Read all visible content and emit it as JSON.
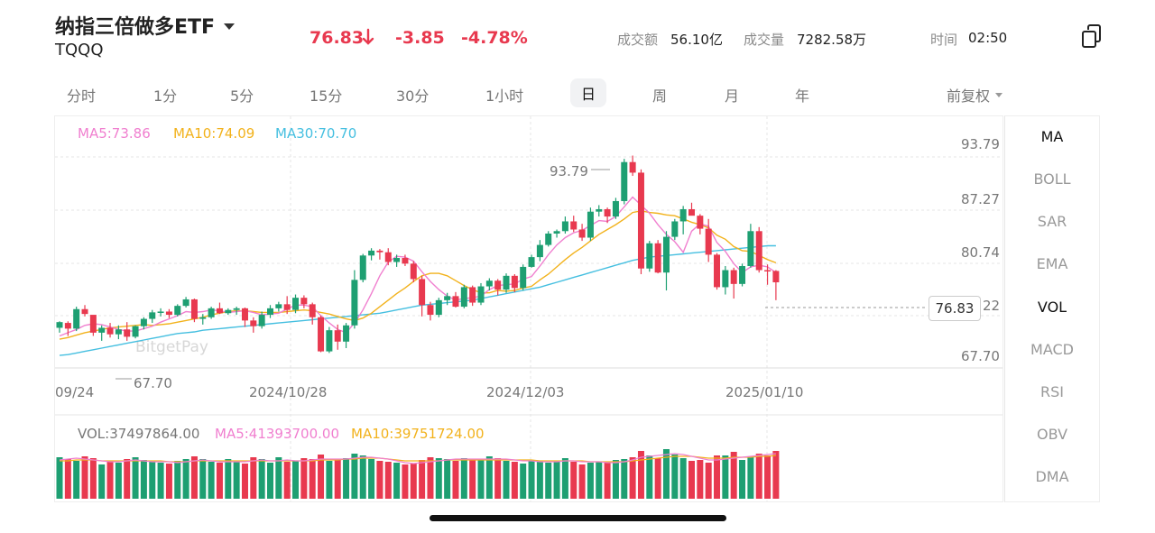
{
  "header": {
    "title": "纳指三倍做多ETF",
    "ticker": "TQQQ",
    "price": "76.83",
    "change": "-3.85",
    "change_pct": "-4.78%",
    "turnover_label": "成交额",
    "turnover_value": "56.10亿",
    "volume_label": "成交量",
    "volume_value": "7282.58万",
    "time_label": "时间",
    "time_value": "02:50"
  },
  "tabs": [
    "分时",
    "1分",
    "5分",
    "15分",
    "30分",
    "1小时",
    "日",
    "周",
    "月",
    "年"
  ],
  "active_tab": "日",
  "adjust_label": "前复权",
  "indicators": [
    "MA",
    "BOLL",
    "SAR",
    "EMA",
    "VOL",
    "MACD",
    "RSI",
    "OBV",
    "DMA"
  ],
  "active_indicators": [
    "MA",
    "VOL"
  ],
  "price_legend": {
    "ma5": "MA5:73.86",
    "ma10": "MA10:74.09",
    "ma30": "MA30:70.70"
  },
  "vol_legend": {
    "vol": "VOL:37497864.00",
    "ma5": "MA5:41393700.00",
    "ma10": "MA10:39751724.00"
  },
  "y_axis_labels": [
    "93.79",
    "87.27",
    "80.74",
    "22",
    "67.70"
  ],
  "current_price_box": "76.83",
  "high_marker": "93.79",
  "low_marker": "67.70",
  "x_axis_labels": [
    "09/24",
    "2024/10/28",
    "2024/12/03",
    "2025/01/10"
  ],
  "watermark": "BitgetPay",
  "colors": {
    "up": "#1e9f72",
    "down": "#e8394f",
    "ma5": "#f07fcf",
    "ma10": "#f2b21c",
    "ma30": "#45bfe0"
  },
  "chart_data": {
    "type": "candlestick",
    "ylim": [
      67.7,
      93.79
    ],
    "candles": [
      [
        71.2,
        72.0,
        70.6,
        71.9
      ],
      [
        71.8,
        72.0,
        70.2,
        71.1
      ],
      [
        71.1,
        73.8,
        70.8,
        73.5
      ],
      [
        73.5,
        74.0,
        72.6,
        72.9
      ],
      [
        72.8,
        72.7,
        70.2,
        70.6
      ],
      [
        70.6,
        71.5,
        69.6,
        71.2
      ],
      [
        71.2,
        71.8,
        70.0,
        70.4
      ],
      [
        70.4,
        71.5,
        69.8,
        71.0
      ],
      [
        71.0,
        71.9,
        69.6,
        70.1
      ],
      [
        70.1,
        71.5,
        69.9,
        71.4
      ],
      [
        71.4,
        72.5,
        71.0,
        72.3
      ],
      [
        72.3,
        73.4,
        71.8,
        73.1
      ],
      [
        73.1,
        73.6,
        72.6,
        73.2
      ],
      [
        73.2,
        73.5,
        72.4,
        72.8
      ],
      [
        72.8,
        74.1,
        72.6,
        73.9
      ],
      [
        73.9,
        75.0,
        73.7,
        74.7
      ],
      [
        74.7,
        74.8,
        71.9,
        72.3
      ],
      [
        72.3,
        72.9,
        71.6,
        72.5
      ],
      [
        72.5,
        73.8,
        72.3,
        73.6
      ],
      [
        73.6,
        74.3,
        72.9,
        73.0
      ],
      [
        73.0,
        73.6,
        72.8,
        73.4
      ],
      [
        73.4,
        73.8,
        72.8,
        73.6
      ],
      [
        73.6,
        73.7,
        71.3,
        72.1
      ],
      [
        72.1,
        72.5,
        70.6,
        71.4
      ],
      [
        71.4,
        73.2,
        71.1,
        72.8
      ],
      [
        72.8,
        74.0,
        72.4,
        73.6
      ],
      [
        73.6,
        74.4,
        73.2,
        74.1
      ],
      [
        74.1,
        75.1,
        72.9,
        73.4
      ],
      [
        73.4,
        75.3,
        73.0,
        74.9
      ],
      [
        74.9,
        75.2,
        73.6,
        74.1
      ],
      [
        74.1,
        74.3,
        71.6,
        72.5
      ],
      [
        72.5,
        72.7,
        68.2,
        68.3
      ],
      [
        68.3,
        71.3,
        68.1,
        70.9
      ],
      [
        70.9,
        71.6,
        68.5,
        69.5
      ],
      [
        69.5,
        71.8,
        68.7,
        71.5
      ],
      [
        71.5,
        78.3,
        71.1,
        77.1
      ],
      [
        77.1,
        80.3,
        76.8,
        80.1
      ],
      [
        80.1,
        81.0,
        79.5,
        80.7
      ],
      [
        80.7,
        80.9,
        79.6,
        80.5
      ],
      [
        80.5,
        81.0,
        78.9,
        79.3
      ],
      [
        79.3,
        80.2,
        78.7,
        79.8
      ],
      [
        79.8,
        80.2,
        78.8,
        79.1
      ],
      [
        79.1,
        79.4,
        76.8,
        77.2
      ],
      [
        77.2,
        77.6,
        72.6,
        74.0
      ],
      [
        74.0,
        74.4,
        72.1,
        72.8
      ],
      [
        72.8,
        74.9,
        72.5,
        74.6
      ],
      [
        74.6,
        75.5,
        74.0,
        75.1
      ],
      [
        75.1,
        75.6,
        73.7,
        73.8
      ],
      [
        73.8,
        76.5,
        73.6,
        76.2
      ],
      [
        76.2,
        76.4,
        73.9,
        74.3
      ],
      [
        74.3,
        76.7,
        74.0,
        76.3
      ],
      [
        76.3,
        77.3,
        75.8,
        77.0
      ],
      [
        77.0,
        77.2,
        75.2,
        75.9
      ],
      [
        75.9,
        77.9,
        75.5,
        77.6
      ],
      [
        77.6,
        77.8,
        75.6,
        76.1
      ],
      [
        76.1,
        79.0,
        75.8,
        78.7
      ],
      [
        78.7,
        80.2,
        78.6,
        79.9
      ],
      [
        79.9,
        82.0,
        79.4,
        81.4
      ],
      [
        81.4,
        83.1,
        81.2,
        82.8
      ],
      [
        82.8,
        83.3,
        82.3,
        83.1
      ],
      [
        83.1,
        84.9,
        82.8,
        84.3
      ],
      [
        84.3,
        85.0,
        83.0,
        83.3
      ],
      [
        83.3,
        84.0,
        81.9,
        82.3
      ],
      [
        82.3,
        86.0,
        81.9,
        85.5
      ],
      [
        85.5,
        86.3,
        84.9,
        85.8
      ],
      [
        85.8,
        86.0,
        84.1,
        84.9
      ],
      [
        84.9,
        87.2,
        84.6,
        86.8
      ],
      [
        86.8,
        92.0,
        86.4,
        91.6
      ],
      [
        91.6,
        92.4,
        89.9,
        90.3
      ],
      [
        90.3,
        90.7,
        77.8,
        78.5
      ],
      [
        78.5,
        81.9,
        78.1,
        81.6
      ],
      [
        81.6,
        82.0,
        77.9,
        78.0
      ],
      [
        78.0,
        83.1,
        75.8,
        82.4
      ],
      [
        82.4,
        84.6,
        82.0,
        84.3
      ],
      [
        84.3,
        86.2,
        82.7,
        85.8
      ],
      [
        85.8,
        86.6,
        85.2,
        85.0
      ],
      [
        85.0,
        85.2,
        82.7,
        83.4
      ],
      [
        83.4,
        84.6,
        79.3,
        80.2
      ],
      [
        80.2,
        80.4,
        75.9,
        76.2
      ],
      [
        76.2,
        78.8,
        75.3,
        78.3
      ],
      [
        78.3,
        78.6,
        74.8,
        76.6
      ],
      [
        76.6,
        79.1,
        76.3,
        78.8
      ],
      [
        78.8,
        84.0,
        78.6,
        83.1
      ],
      [
        83.1,
        83.6,
        78.0,
        78.3
      ],
      [
        78.3,
        79.0,
        76.5,
        78.2
      ],
      [
        78.2,
        78.3,
        74.6,
        76.8
      ]
    ],
    "ma5": [
      70.2,
      70.6,
      71.0,
      71.5,
      71.7,
      71.6,
      71.3,
      71.0,
      70.8,
      70.8,
      71.1,
      71.4,
      71.9,
      72.3,
      72.7,
      73.2,
      73.1,
      73.2,
      73.4,
      73.3,
      73.1,
      73.2,
      73.3,
      73.1,
      72.8,
      72.9,
      73.0,
      73.5,
      74.0,
      74.0,
      73.8,
      72.7,
      71.8,
      71.0,
      70.6,
      71.8,
      73.4,
      75.4,
      77.6,
      79.3,
      80.0,
      79.9,
      79.4,
      78.1,
      76.9,
      75.9,
      75.1,
      74.6,
      74.8,
      74.9,
      75.1,
      75.9,
      76.4,
      76.5,
      76.6,
      77.2,
      77.5,
      78.8,
      80.2,
      81.4,
      82.3,
      82.9,
      83.2,
      83.8,
      84.4,
      84.3,
      84.9,
      86.1,
      87.3,
      86.3,
      85.3,
      83.9,
      82.7,
      81.8,
      80.5,
      83.1,
      84.0,
      83.7,
      81.7,
      80.6,
      79.1,
      78.0,
      78.7,
      78.9,
      78.7,
      78.0
    ],
    "ma10": [
      69.8,
      70.0,
      70.3,
      70.6,
      70.8,
      71.0,
      71.2,
      71.3,
      71.4,
      71.5,
      71.6,
      71.5,
      71.6,
      71.7,
      71.9,
      72.1,
      72.3,
      72.5,
      72.8,
      73.0,
      73.2,
      73.3,
      73.3,
      73.2,
      73.1,
      73.1,
      73.1,
      73.2,
      73.3,
      73.4,
      73.3,
      73.1,
      72.9,
      72.6,
      72.3,
      72.1,
      72.4,
      73.0,
      73.8,
      74.6,
      75.4,
      76.1,
      76.9,
      77.6,
      77.9,
      77.9,
      77.6,
      77.0,
      76.4,
      75.9,
      75.5,
      75.5,
      75.8,
      75.7,
      75.8,
      76.1,
      76.3,
      77.1,
      77.8,
      78.7,
      79.6,
      80.4,
      81.1,
      81.9,
      82.7,
      83.3,
      83.9,
      84.6,
      85.4,
      85.6,
      85.4,
      85.3,
      85.1,
      85.0,
      84.6,
      84.2,
      83.9,
      83.5,
      82.6,
      82.1,
      81.2,
      80.7,
      80.6,
      80.1,
      79.6,
      79.2
    ],
    "ma30": [
      67.8,
      67.9,
      68.1,
      68.3,
      68.5,
      68.7,
      68.9,
      69.1,
      69.3,
      69.5,
      69.7,
      69.9,
      70.1,
      70.3,
      70.5,
      70.6,
      70.7,
      70.9,
      71.0,
      71.1,
      71.2,
      71.3,
      71.4,
      71.5,
      71.6,
      71.7,
      71.8,
      71.9,
      72.0,
      72.1,
      72.2,
      72.3,
      72.4,
      72.5,
      72.6,
      72.7,
      72.8,
      72.9,
      73.0,
      73.2,
      73.4,
      73.6,
      73.8,
      74.0,
      74.1,
      74.2,
      74.3,
      74.4,
      74.5,
      74.6,
      74.8,
      75.0,
      75.2,
      75.4,
      75.6,
      75.8,
      76.0,
      76.2,
      76.5,
      76.8,
      77.1,
      77.4,
      77.7,
      78.0,
      78.3,
      78.6,
      78.9,
      79.2,
      79.5,
      79.7,
      79.9,
      80.0,
      80.1,
      80.2,
      80.3,
      80.4,
      80.5,
      80.6,
      80.7,
      80.8,
      80.9,
      81.0,
      81.1,
      81.2,
      81.3,
      81.3
    ],
    "volumes": [
      46,
      44,
      42,
      47,
      45,
      38,
      42,
      40,
      44,
      46,
      43,
      41,
      40,
      39,
      42,
      44,
      47,
      44,
      41,
      40,
      44,
      41,
      39,
      46,
      44,
      40,
      46,
      41,
      42,
      45,
      44,
      49,
      42,
      44,
      45,
      50,
      48,
      44,
      42,
      41,
      40,
      38,
      39,
      43,
      46,
      45,
      44,
      42,
      45,
      43,
      44,
      47,
      45,
      42,
      41,
      39,
      43,
      41,
      40,
      42,
      45,
      41,
      38,
      40,
      41,
      40,
      43,
      44,
      46,
      53,
      48,
      45,
      55,
      49,
      45,
      42,
      43,
      40,
      48,
      48,
      52,
      43,
      47,
      50,
      48,
      53
    ],
    "vol_ma5": [
      43,
      44,
      45,
      44,
      43,
      42,
      41,
      41,
      42,
      43,
      42,
      41,
      41,
      41,
      40,
      41,
      42,
      43,
      42,
      41,
      41,
      41,
      41,
      42,
      43,
      42,
      42,
      43,
      42,
      42,
      43,
      44,
      44,
      44,
      44,
      45,
      46,
      46,
      45,
      44,
      42,
      40,
      39,
      40,
      41,
      42,
      43,
      44,
      44,
      44,
      44,
      44,
      44,
      44,
      43,
      42,
      42,
      41,
      41,
      41,
      42,
      42,
      41,
      41,
      41,
      40,
      40,
      41,
      43,
      46,
      47,
      48,
      49,
      50,
      49,
      47,
      45,
      43,
      43,
      44,
      45,
      46,
      47,
      48,
      49,
      50
    ],
    "vol_ma10": [
      42,
      42,
      43,
      43,
      43,
      42,
      42,
      42,
      42,
      42,
      42,
      42,
      42,
      41,
      41,
      41,
      42,
      42,
      42,
      42,
      42,
      42,
      42,
      42,
      42,
      42,
      42,
      42,
      42,
      42,
      42,
      43,
      43,
      43,
      44,
      44,
      45,
      45,
      45,
      44,
      43,
      42,
      42,
      42,
      42,
      42,
      43,
      43,
      43,
      43,
      43,
      43,
      43,
      43,
      43,
      43,
      43,
      42,
      42,
      42,
      42,
      42,
      42,
      41,
      41,
      41,
      41,
      41,
      42,
      43,
      44,
      45,
      46,
      47,
      47,
      47,
      46,
      45,
      45,
      45,
      46,
      46,
      46,
      47,
      47,
      48
    ]
  }
}
